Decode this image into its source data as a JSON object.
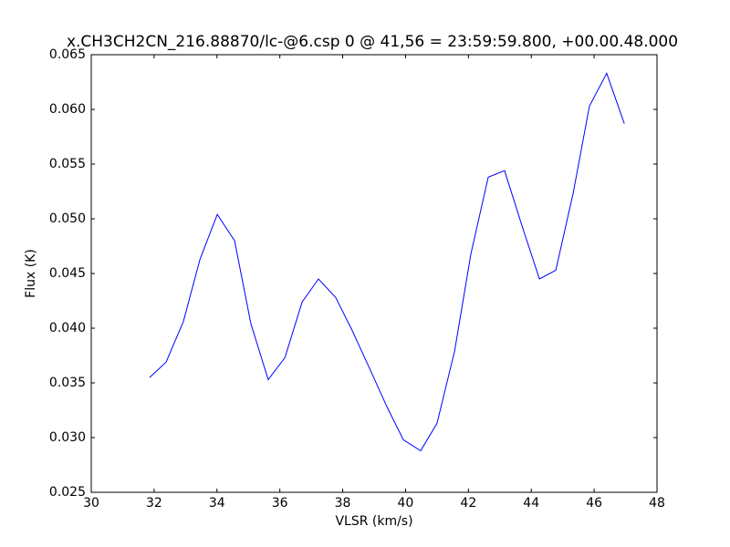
{
  "chart_data": {
    "type": "line",
    "title": "x.CH3CH2CN_216.88870/lc-@6.csp 0 @ 41,56 = 23:59:59.800, +00.00.48.000",
    "x_label": "VLSR (km/s)",
    "y_label": "Flux (K)",
    "x": [
      31.86,
      32.38,
      32.93,
      33.46,
      34.01,
      34.56,
      35.08,
      35.63,
      36.16,
      36.71,
      37.23,
      37.78,
      38.3,
      38.86,
      39.41,
      39.93,
      40.48,
      41.0,
      41.56,
      42.08,
      42.63,
      43.15,
      43.7,
      44.26,
      44.78,
      45.33,
      45.85,
      46.4,
      46.96
    ],
    "series": [
      {
        "color": "#0000ff",
        "values": [
          0.0355,
          0.0369,
          0.0406,
          0.0463,
          0.0504,
          0.048,
          0.0404,
          0.0353,
          0.0373,
          0.0424,
          0.0445,
          0.0428,
          0.0398,
          0.0363,
          0.0328,
          0.0298,
          0.0288,
          0.0313,
          0.0379,
          0.0468,
          0.0538,
          0.0544,
          0.0494,
          0.0445,
          0.0453,
          0.0523,
          0.0603,
          0.0633,
          0.0587
        ]
      }
    ],
    "xlim": [
      30,
      48
    ],
    "xticks": [
      30,
      32,
      34,
      36,
      38,
      40,
      42,
      44,
      46,
      48
    ],
    "ylim": [
      0.025,
      0.065
    ],
    "yticks": [
      0.025,
      {
        "value": 0.03,
        "label": "0.030"
      },
      0.035,
      {
        "value": 0.04,
        "label": "0.040"
      },
      0.045,
      {
        "value": 0.05,
        "label": "0.050"
      },
      0.055,
      {
        "value": 0.06,
        "label": "0.060"
      },
      0.065
    ]
  }
}
